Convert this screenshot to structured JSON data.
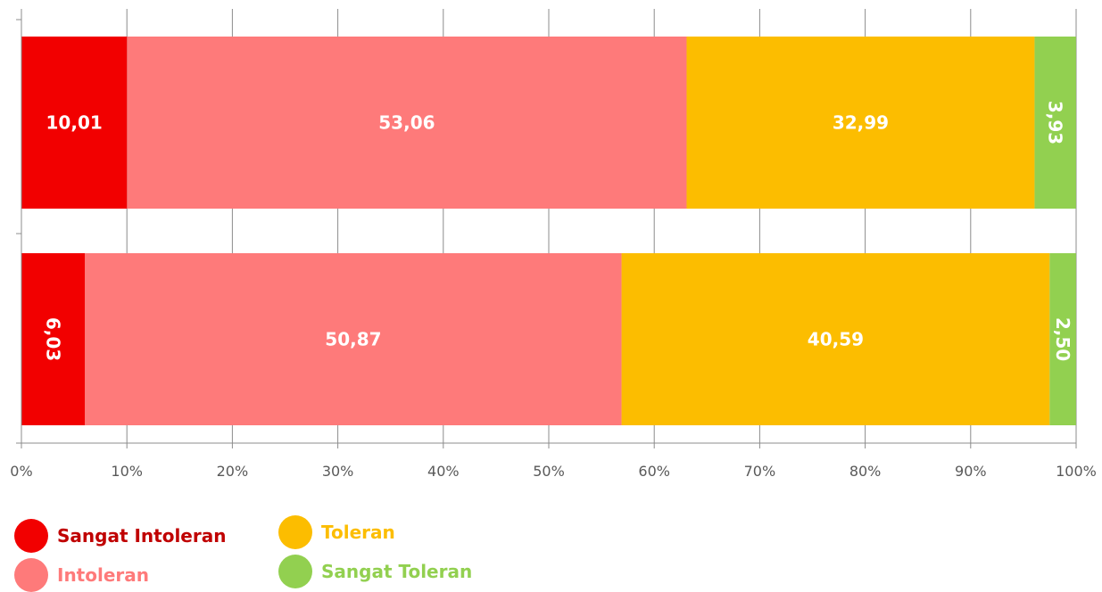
{
  "chart_data": {
    "type": "bar",
    "orientation": "horizontal",
    "stacked": true,
    "percent_scale": true,
    "categories": [
      "",
      ""
    ],
    "series": [
      {
        "name": "Sangat Intoleran",
        "color": "#f20000",
        "label_color": "#ffffff",
        "values": [
          10.01,
          6.03
        ],
        "labels": [
          "10,01",
          "6,03"
        ],
        "label_rotated": [
          false,
          true
        ]
      },
      {
        "name": "Intoleran",
        "color": "#fe7a7a",
        "label_color": "#ffffff",
        "values": [
          53.06,
          50.87
        ],
        "labels": [
          "53,06",
          "50,87"
        ],
        "label_rotated": [
          false,
          false
        ]
      },
      {
        "name": "Toleran",
        "color": "#fcbd00",
        "label_color": "#ffffff",
        "values": [
          32.99,
          40.59
        ],
        "labels": [
          "32,99",
          "40,59"
        ],
        "label_rotated": [
          false,
          false
        ]
      },
      {
        "name": "Sangat Toleran",
        "color": "#92d050",
        "label_color": "#ffffff",
        "values": [
          3.93,
          2.5
        ],
        "labels": [
          "3,93",
          "2,50"
        ],
        "label_rotated": [
          true,
          true
        ]
      }
    ],
    "x_ticks": [
      "0%",
      "10%",
      "20%",
      "30%",
      "40%",
      "50%",
      "60%",
      "70%",
      "80%",
      "90%",
      "100%"
    ],
    "xlim": [
      0,
      100
    ],
    "grid": true,
    "legend_position": "bottom-left",
    "legend_text_colors": {
      "Sangat Intoleran": "#c00000",
      "Intoleran": "#fe7a7a",
      "Toleran": "#fcbd00",
      "Sangat Toleran": "#92d050"
    }
  }
}
